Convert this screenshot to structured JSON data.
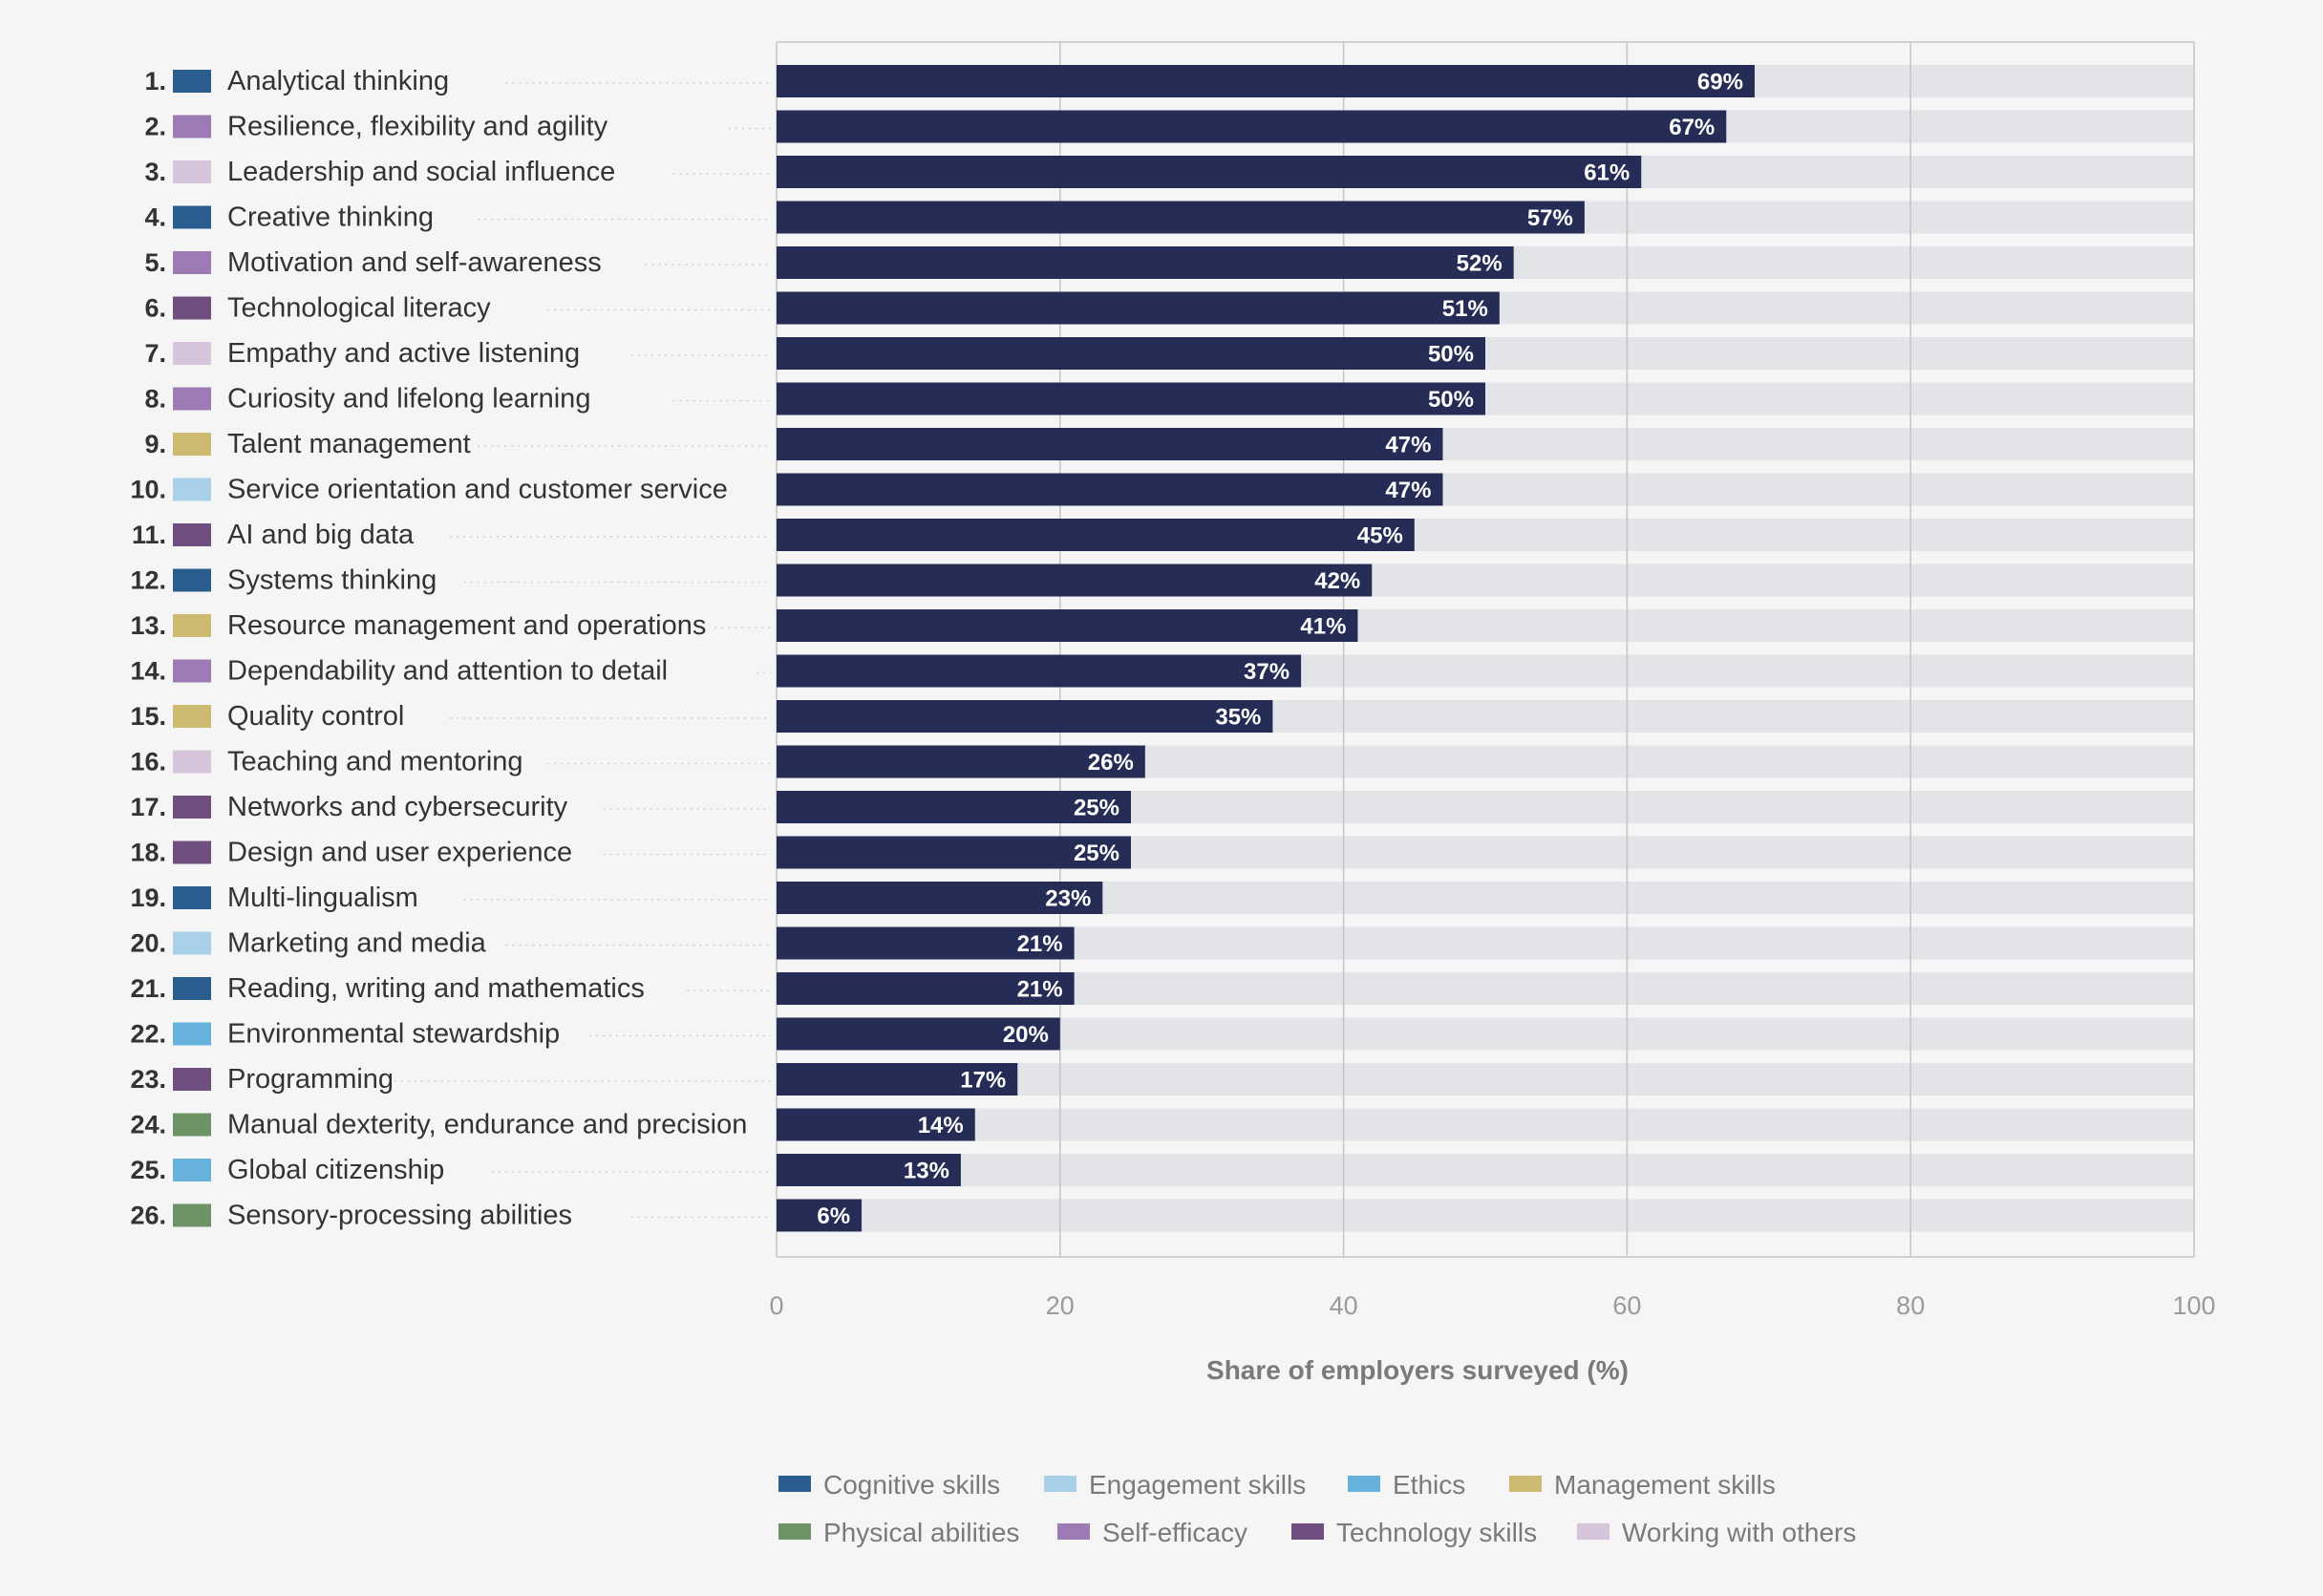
{
  "chart_data": {
    "type": "bar",
    "orientation": "horizontal",
    "xlabel": "Share of employers surveyed (%)",
    "xlim": [
      0,
      100
    ],
    "xticks": [
      0,
      20,
      40,
      60,
      80,
      100
    ],
    "grid": true,
    "legend_position": "bottom",
    "value_suffix": "%",
    "colors": {
      "bar": "#252c55",
      "track": "#e3e4e8"
    },
    "legend": [
      {
        "key": "cognitive",
        "label": "Cognitive skills",
        "color": "#2a5e8f"
      },
      {
        "key": "engagement",
        "label": "Engagement skills",
        "color": "#a8d0e8"
      },
      {
        "key": "ethics",
        "label": "Ethics",
        "color": "#66b2dc"
      },
      {
        "key": "management",
        "label": "Management skills",
        "color": "#cdbb72"
      },
      {
        "key": "physical",
        "label": "Physical abilities",
        "color": "#6d9266"
      },
      {
        "key": "selfefficacy",
        "label": "Self-efficacy",
        "color": "#9c7bb4"
      },
      {
        "key": "technology",
        "label": "Technology skills",
        "color": "#6f4f7f"
      },
      {
        "key": "others",
        "label": "Working with others",
        "color": "#d6c5da"
      }
    ],
    "items": [
      {
        "rank": "1.",
        "label": "Analytical thinking",
        "value": 69,
        "category": "cognitive"
      },
      {
        "rank": "2.",
        "label": "Resilience, flexibility and agility",
        "value": 67,
        "category": "selfefficacy"
      },
      {
        "rank": "3.",
        "label": "Leadership and social influence",
        "value": 61,
        "category": "others"
      },
      {
        "rank": "4.",
        "label": "Creative thinking",
        "value": 57,
        "category": "cognitive"
      },
      {
        "rank": "5.",
        "label": "Motivation and self-awareness",
        "value": 52,
        "category": "selfefficacy"
      },
      {
        "rank": "6.",
        "label": "Technological literacy",
        "value": 51,
        "category": "technology"
      },
      {
        "rank": "7.",
        "label": "Empathy and active listening",
        "value": 50,
        "category": "others"
      },
      {
        "rank": "8.",
        "label": "Curiosity and lifelong learning",
        "value": 50,
        "category": "selfefficacy"
      },
      {
        "rank": "9.",
        "label": "Talent management",
        "value": 47,
        "category": "management"
      },
      {
        "rank": "10.",
        "label": "Service orientation and customer service",
        "value": 47,
        "category": "engagement"
      },
      {
        "rank": "11.",
        "label": "AI and big data",
        "value": 45,
        "category": "technology"
      },
      {
        "rank": "12.",
        "label": "Systems thinking",
        "value": 42,
        "category": "cognitive"
      },
      {
        "rank": "13.",
        "label": "Resource management and operations",
        "value": 41,
        "category": "management"
      },
      {
        "rank": "14.",
        "label": "Dependability and attention to detail",
        "value": 37,
        "category": "selfefficacy"
      },
      {
        "rank": "15.",
        "label": "Quality control",
        "value": 35,
        "category": "management"
      },
      {
        "rank": "16.",
        "label": "Teaching and mentoring",
        "value": 26,
        "category": "others"
      },
      {
        "rank": "17.",
        "label": "Networks and cybersecurity",
        "value": 25,
        "category": "technology"
      },
      {
        "rank": "18.",
        "label": "Design and user experience",
        "value": 25,
        "category": "technology"
      },
      {
        "rank": "19.",
        "label": "Multi-lingualism",
        "value": 23,
        "category": "cognitive"
      },
      {
        "rank": "20.",
        "label": "Marketing and media",
        "value": 21,
        "category": "engagement"
      },
      {
        "rank": "21.",
        "label": "Reading, writing and mathematics",
        "value": 21,
        "category": "cognitive"
      },
      {
        "rank": "22.",
        "label": "Environmental stewardship",
        "value": 20,
        "category": "ethics"
      },
      {
        "rank": "23.",
        "label": "Programming",
        "value": 17,
        "category": "technology"
      },
      {
        "rank": "24.",
        "label": "Manual dexterity, endurance and precision",
        "value": 14,
        "category": "physical"
      },
      {
        "rank": "25.",
        "label": "Global citizenship",
        "value": 13,
        "category": "ethics"
      },
      {
        "rank": "26.",
        "label": "Sensory-processing abilities",
        "value": 6,
        "category": "physical"
      }
    ]
  }
}
